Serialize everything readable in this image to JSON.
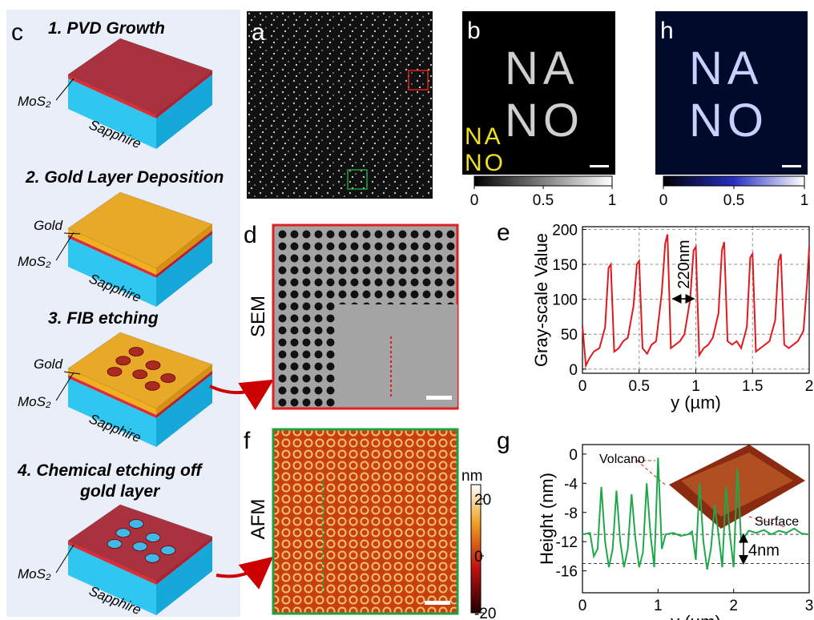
{
  "panels": {
    "c": {
      "label": "c",
      "steps": [
        "1.   PVD Growth",
        "2. Gold Layer Deposition",
        "3.     FIB etching",
        "4.  Chemical etching off",
        "gold layer"
      ],
      "labels": {
        "mos2": "MoS₂",
        "sapphire": "Sapphire",
        "gold": "Gold"
      }
    },
    "a": {
      "label": "a"
    },
    "b": {
      "label": "b",
      "image_text": [
        "NA",
        "NO"
      ],
      "overlay_text": [
        "NA",
        "NO"
      ],
      "colorbar_lim": [
        0,
        1
      ],
      "colorbar_ticks": [
        0,
        0.5,
        1
      ]
    },
    "h": {
      "label": "h",
      "image_text": [
        "NA",
        "NO"
      ],
      "colorbar_lim": [
        0,
        1
      ],
      "colorbar_ticks": [
        0,
        0.5,
        1
      ]
    },
    "d": {
      "label": "d",
      "technique": "SEM"
    },
    "f": {
      "label": "f",
      "technique": "AFM",
      "colorbar_unit": "nm",
      "colorbar_lim": [
        -20,
        25
      ],
      "colorbar_ticks": [
        20,
        0,
        -20
      ]
    },
    "e": {
      "label": "e"
    },
    "g": {
      "label": "g"
    }
  },
  "chart_data": [
    {
      "type": "line",
      "xlabel": "y (µm)",
      "ylabel": "Gray-scale Value",
      "color": "#e0191e",
      "grid": true,
      "annotations": [
        "220nm"
      ],
      "x": [
        0,
        0.03,
        0.06,
        0.1,
        0.15,
        0.2,
        0.23,
        0.25,
        0.28,
        0.32,
        0.36,
        0.4,
        0.45,
        0.48,
        0.5,
        0.53,
        0.57,
        0.61,
        0.65,
        0.7,
        0.73,
        0.75,
        0.78,
        0.82,
        0.86,
        0.9,
        0.95,
        0.98,
        1.0,
        1.03,
        1.07,
        1.11,
        1.15,
        1.2,
        1.23,
        1.25,
        1.28,
        1.32,
        1.36,
        1.4,
        1.45,
        1.48,
        1.5,
        1.53,
        1.57,
        1.61,
        1.65,
        1.7,
        1.73,
        1.75,
        1.78,
        1.82,
        1.86,
        1.9,
        1.95,
        1.98,
        2.0
      ],
      "values": [
        62,
        5,
        15,
        25,
        30,
        60,
        145,
        150,
        25,
        30,
        40,
        45,
        90,
        150,
        155,
        30,
        22,
        35,
        40,
        110,
        180,
        193,
        30,
        35,
        40,
        50,
        100,
        170,
        175,
        20,
        30,
        35,
        45,
        80,
        170,
        182,
        40,
        35,
        40,
        30,
        60,
        160,
        165,
        25,
        30,
        35,
        40,
        70,
        155,
        165,
        35,
        30,
        35,
        40,
        55,
        120,
        175
      ],
      "xlim": [
        0,
        2
      ],
      "ylim": [
        -6,
        204
      ],
      "xticks": [
        0,
        0.5,
        1,
        1.5,
        2
      ],
      "yticks": [
        0,
        50,
        100,
        150,
        200
      ]
    },
    {
      "type": "line",
      "xlabel": "y (µm)",
      "ylabel": "Height (nm)",
      "color": "#1fa84a",
      "grid": false,
      "annotations": [
        "Volcano",
        "Surface",
        "4nm"
      ],
      "hlines": [
        -11,
        -15
      ],
      "x": [
        0,
        0.1,
        0.15,
        0.2,
        0.25,
        0.3,
        0.35,
        0.4,
        0.45,
        0.5,
        0.55,
        0.6,
        0.65,
        0.7,
        0.75,
        0.8,
        0.85,
        0.9,
        0.95,
        1.0,
        1.05,
        1.1,
        1.2,
        1.3,
        1.4,
        1.45,
        1.5,
        1.55,
        1.6,
        1.65,
        1.7,
        1.75,
        1.8,
        1.85,
        1.9,
        1.95,
        2.0,
        2.05,
        2.1,
        2.2,
        2.3,
        2.4,
        2.5,
        2.6,
        2.7,
        2.8,
        2.9,
        3.0
      ],
      "values": [
        -11,
        -10.8,
        -14,
        -13,
        -4.5,
        -12,
        -15.5,
        -13,
        -5,
        -12,
        -15.5,
        -13,
        -5.5,
        -11.5,
        -15.5,
        -13.5,
        -4,
        -11,
        -15.5,
        -0.5,
        -13,
        -11,
        -10.8,
        -11.2,
        -11,
        -10.6,
        -14.5,
        -4,
        -12,
        -15.8,
        -13,
        -7,
        -11,
        -15.5,
        -4.5,
        -11,
        -15.5,
        -2,
        -12,
        -10.5,
        -10.8,
        -10.4,
        -11,
        -10.5,
        -10.8,
        -10.2,
        -10.9,
        -11
      ],
      "xlim": [
        0,
        3
      ],
      "ylim": [
        -19,
        1.3
      ],
      "xticks": [
        0,
        1,
        2,
        3
      ],
      "yticks": [
        0,
        -4,
        -8,
        -12,
        -16
      ]
    }
  ]
}
